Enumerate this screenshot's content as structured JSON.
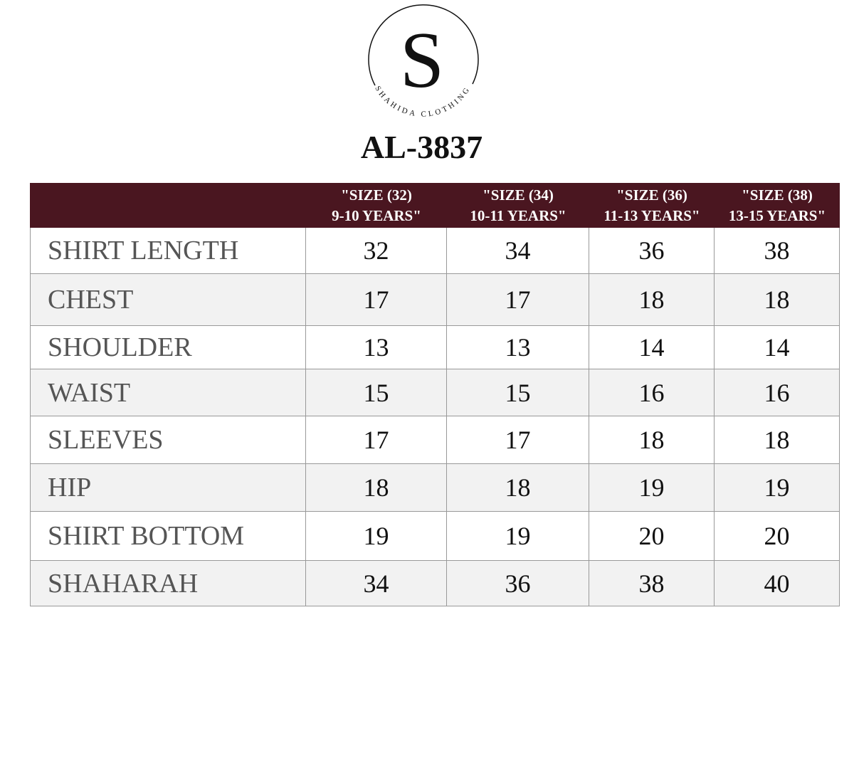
{
  "logo": {
    "letter": "S",
    "text": "SHAHIDA CLOTHING"
  },
  "title": "AL-3837",
  "table": {
    "columns": [
      [
        "\"SIZE (32)",
        "9-10 YEARS\""
      ],
      [
        "\"SIZE (34)",
        "10-11 YEARS\""
      ],
      [
        "\"SIZE (36)",
        "11-13 YEARS\""
      ],
      [
        "\"SIZE (38)",
        "13-15 YEARS\""
      ]
    ],
    "rows": [
      {
        "label": "SHIRT LENGTH",
        "values": [
          32,
          34,
          36,
          38
        ]
      },
      {
        "label": "CHEST",
        "values": [
          17,
          17,
          18,
          18
        ]
      },
      {
        "label": "SHOULDER",
        "values": [
          13,
          13,
          14,
          14
        ]
      },
      {
        "label": "WAIST",
        "values": [
          15,
          15,
          16,
          16
        ]
      },
      {
        "label": "SLEEVES",
        "values": [
          17,
          17,
          18,
          18
        ]
      },
      {
        "label": "HIP",
        "values": [
          18,
          18,
          19,
          19
        ]
      },
      {
        "label": "SHIRT BOTTOM",
        "values": [
          19,
          19,
          20,
          20
        ]
      },
      {
        "label": "SHAHARAH",
        "values": [
          34,
          36,
          38,
          40
        ]
      }
    ]
  }
}
